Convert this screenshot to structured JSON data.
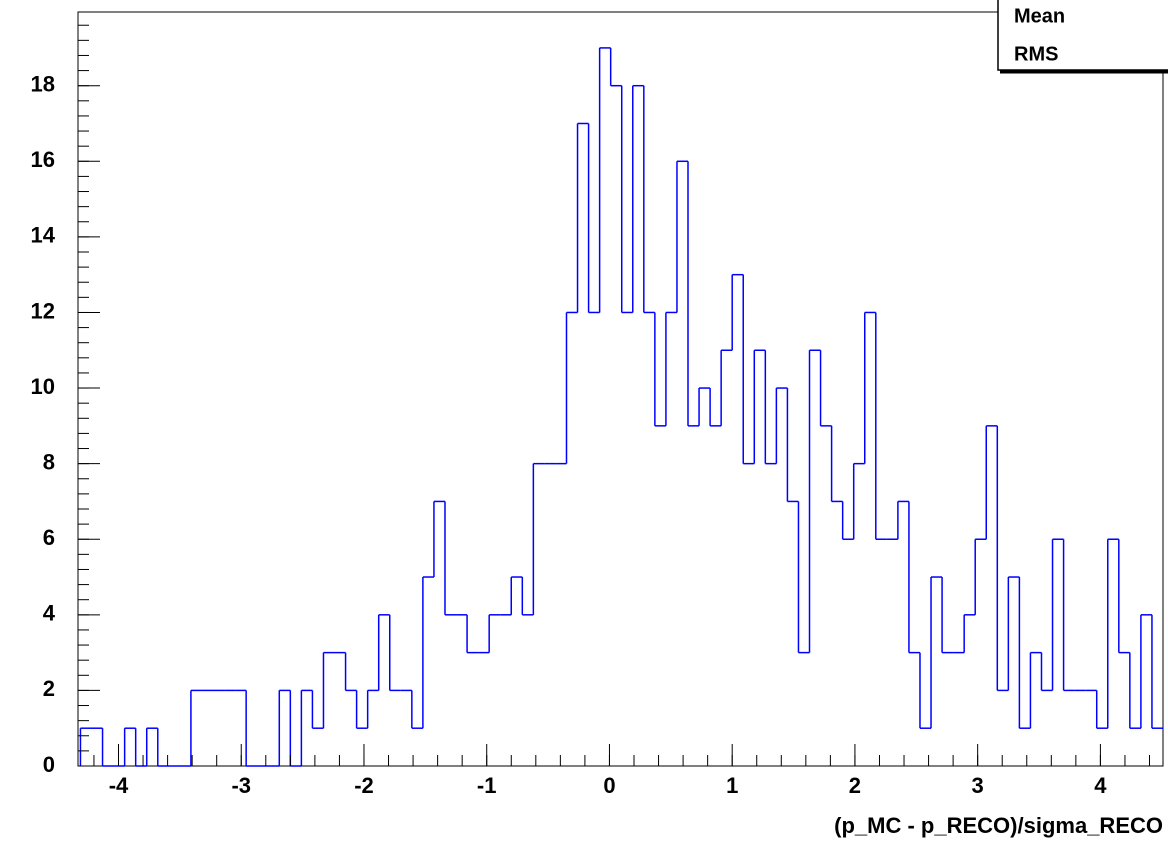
{
  "chart_data": {
    "type": "histogram",
    "x_label": "(p_MC - p_RECO)/sigma_RECO",
    "stats_labels": [
      "Mean",
      "RMS"
    ],
    "color": "#0000ff",
    "bins": [
      -4.31,
      -4.22,
      -4.13,
      -4.04,
      -3.95,
      -3.86,
      -3.77,
      -3.68,
      -3.59,
      -3.5,
      -3.41,
      -3.32,
      -3.23,
      -3.14,
      -3.05,
      -2.96,
      -2.87,
      -2.78,
      -2.69,
      -2.6,
      -2.51,
      -2.42,
      -2.33,
      -2.24,
      -2.15,
      -2.06,
      -1.97,
      -1.88,
      -1.79,
      -1.7,
      -1.61,
      -1.52,
      -1.43,
      -1.34,
      -1.25,
      -1.16,
      -1.07,
      -0.98,
      -0.89,
      -0.8,
      -0.71,
      -0.62,
      -0.53,
      -0.44,
      -0.35,
      -0.26,
      -0.17,
      -0.08,
      0.01,
      0.1,
      0.19,
      0.28,
      0.37,
      0.46,
      0.55,
      0.64,
      0.73,
      0.82,
      0.91,
      1.0,
      1.09,
      1.18,
      1.27,
      1.36,
      1.45,
      1.54,
      1.63,
      1.72,
      1.81,
      1.9,
      1.99,
      2.08,
      2.17,
      2.26,
      2.35,
      2.44,
      2.53,
      2.62,
      2.71,
      2.8,
      2.89,
      2.98,
      3.07,
      3.16,
      3.25,
      3.34,
      3.43,
      3.52,
      3.61,
      3.7,
      3.79,
      3.88,
      3.97,
      4.06,
      4.15,
      4.24,
      4.33,
      4.42,
      4.51
    ],
    "values": [
      1,
      1,
      0,
      0,
      1,
      0,
      1,
      0,
      0,
      0,
      2,
      2,
      2,
      2,
      2,
      0,
      0,
      0,
      2,
      0,
      2,
      1,
      3,
      3,
      2,
      1,
      2,
      4,
      2,
      2,
      1,
      5,
      7,
      4,
      4,
      3,
      3,
      4,
      4,
      5,
      4,
      8,
      8,
      8,
      12,
      17,
      12,
      19,
      18,
      12,
      18,
      12,
      9,
      12,
      16,
      9,
      10,
      9,
      11,
      13,
      8,
      11,
      8,
      10,
      7,
      3,
      11,
      9,
      7,
      6,
      8,
      12,
      6,
      6,
      7,
      3,
      1,
      5,
      3,
      3,
      4,
      6,
      9,
      2,
      5,
      1,
      3,
      2,
      6,
      2,
      2,
      2,
      1,
      6,
      3,
      1,
      4,
      1
    ],
    "xlim": [
      -4.33,
      4.51
    ],
    "ylim": [
      0,
      19.95
    ],
    "xticks": [
      -4,
      -3,
      -2,
      -1,
      0,
      1,
      2,
      3,
      4
    ],
    "yticks": [
      0,
      2,
      4,
      6,
      8,
      10,
      12,
      14,
      16,
      18
    ]
  }
}
